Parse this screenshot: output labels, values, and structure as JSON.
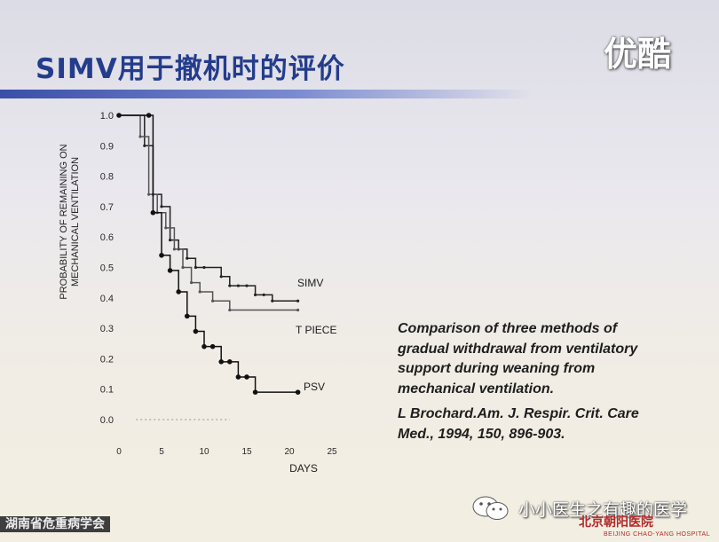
{
  "slide": {
    "title": "SIMV用于撤机时的评价",
    "watermark": "优酷",
    "wechat_label": "小小医生之有趣的医学",
    "footer_left": "湖南省危重病学会",
    "hospital_name": "北京朝阳医院",
    "hospital_subtitle": "BEIJING CHAO-YANG HOSPITAL"
  },
  "caption": {
    "lines": [
      "Comparison of three methods of",
      "gradual withdrawal from ventilatory",
      "support during weaning from",
      "mechanical ventilation."
    ],
    "citation_lines": [
      "L Brochard.Am.  J. Respir. Crit. Care",
      "Med., 1994, 150, 896-903."
    ]
  },
  "chart_data": {
    "type": "line",
    "step": true,
    "ylabel_lines": [
      "PROBABILITY OF REMAINING ON",
      "MECHANICAL VENTILATION"
    ],
    "xlabel": "DAYS",
    "xlim": [
      0,
      25
    ],
    "ylim": [
      0,
      1
    ],
    "x_ticks": [
      0,
      5,
      10,
      15,
      20,
      25
    ],
    "y_ticks": [
      0.0,
      0.1,
      0.2,
      0.3,
      0.4,
      0.5,
      0.6,
      0.7,
      0.8,
      0.9,
      1.0
    ],
    "y_tick_labels": [
      "0.0",
      "0.1",
      "0.2",
      "0.3",
      "0.4",
      "0.5",
      "0.6",
      "0.7",
      "0.8",
      "0.9",
      "1.0"
    ],
    "grid": false,
    "series": [
      {
        "name": "SIMV",
        "color": "#222222",
        "x": [
          0,
          3,
          4,
          5,
          6,
          7,
          8,
          9,
          10,
          12,
          13,
          14,
          15,
          16,
          17,
          18,
          21
        ],
        "y": [
          1.0,
          0.9,
          0.74,
          0.7,
          0.59,
          0.56,
          0.53,
          0.5,
          0.5,
          0.47,
          0.44,
          0.44,
          0.44,
          0.41,
          0.41,
          0.39,
          0.39
        ]
      },
      {
        "name": "T PIECE",
        "color": "#555555",
        "x": [
          0,
          2.5,
          3.5,
          4.5,
          5.5,
          6.5,
          7.5,
          8.5,
          9.5,
          11,
          13,
          21
        ],
        "y": [
          1.0,
          0.93,
          0.74,
          0.68,
          0.63,
          0.56,
          0.5,
          0.45,
          0.42,
          0.39,
          0.36,
          0.36
        ]
      },
      {
        "name": "PSV",
        "color": "#111111",
        "x": [
          0,
          3.5,
          4,
          5,
          6,
          7,
          8,
          9,
          10,
          11,
          12,
          13,
          14,
          15,
          16,
          21
        ],
        "y": [
          1.0,
          1.0,
          0.68,
          0.54,
          0.49,
          0.42,
          0.34,
          0.29,
          0.24,
          0.24,
          0.19,
          0.19,
          0.14,
          0.14,
          0.09,
          0.09
        ]
      }
    ]
  }
}
